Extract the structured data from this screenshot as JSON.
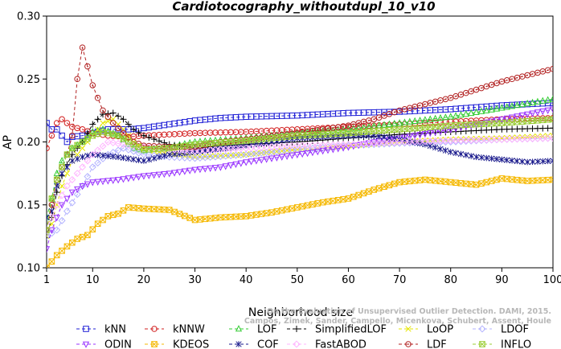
{
  "chart_data": {
    "type": "line",
    "title": "Cardiotocography_withoutdupl_10_v10",
    "xlabel": "Neighborhood size",
    "ylabel": "AP",
    "xlim": [
      1,
      100
    ],
    "ylim": [
      0.1,
      0.3
    ],
    "xticks": [
      "1",
      "10",
      "20",
      "30",
      "40",
      "50",
      "60",
      "70",
      "80",
      "90",
      "100"
    ],
    "yticks": [
      "0.10",
      "0.15",
      "0.20",
      "0.25",
      "0.30"
    ],
    "grid": false,
    "legend": "bottom",
    "watermark": [
      "Campos, Zimek, Sander, Campello, Micenkova, Schubert, Assent, Houle",
      "On the Evaluation of Unsupervised Outlier Detection. DAMI, 2015."
    ],
    "series": [
      {
        "name": "kNN",
        "color": "#1f1fd6",
        "marker": "square",
        "points": [
          [
            1,
            0.215
          ],
          [
            2,
            0.21
          ],
          [
            3,
            0.21
          ],
          [
            4,
            0.205
          ],
          [
            5,
            0.2
          ],
          [
            6,
            0.204
          ],
          [
            8,
            0.205
          ],
          [
            10,
            0.207
          ],
          [
            13,
            0.21
          ],
          [
            17,
            0.21
          ],
          [
            20,
            0.211
          ],
          [
            25,
            0.214
          ],
          [
            30,
            0.217
          ],
          [
            35,
            0.219
          ],
          [
            40,
            0.22
          ],
          [
            50,
            0.221
          ],
          [
            60,
            0.223
          ],
          [
            70,
            0.224
          ],
          [
            80,
            0.226
          ],
          [
            90,
            0.229
          ],
          [
            100,
            0.231
          ]
        ]
      },
      {
        "name": "kNNW",
        "color": "#d21f1f",
        "marker": "circle",
        "points": [
          [
            1,
            0.195
          ],
          [
            2,
            0.205
          ],
          [
            3,
            0.215
          ],
          [
            4,
            0.218
          ],
          [
            5,
            0.215
          ],
          [
            6,
            0.212
          ],
          [
            8,
            0.21
          ],
          [
            10,
            0.207
          ],
          [
            13,
            0.205
          ],
          [
            17,
            0.204
          ],
          [
            20,
            0.205
          ],
          [
            25,
            0.206
          ],
          [
            30,
            0.207
          ],
          [
            40,
            0.208
          ],
          [
            50,
            0.21
          ],
          [
            60,
            0.212
          ],
          [
            70,
            0.214
          ],
          [
            80,
            0.216
          ],
          [
            90,
            0.218
          ],
          [
            100,
            0.219
          ]
        ]
      },
      {
        "name": "LOF",
        "color": "#33cc33",
        "marker": "triangle-up",
        "points": [
          [
            1,
            0.14
          ],
          [
            2,
            0.155
          ],
          [
            3,
            0.175
          ],
          [
            4,
            0.185
          ],
          [
            5,
            0.19
          ],
          [
            6,
            0.195
          ],
          [
            8,
            0.2
          ],
          [
            10,
            0.208
          ],
          [
            12,
            0.21
          ],
          [
            15,
            0.205
          ],
          [
            18,
            0.195
          ],
          [
            20,
            0.193
          ],
          [
            25,
            0.196
          ],
          [
            30,
            0.2
          ],
          [
            40,
            0.203
          ],
          [
            50,
            0.207
          ],
          [
            60,
            0.21
          ],
          [
            70,
            0.215
          ],
          [
            80,
            0.22
          ],
          [
            90,
            0.227
          ],
          [
            100,
            0.234
          ]
        ]
      },
      {
        "name": "SimplifiedLOF",
        "color": "#000000",
        "marker": "plus",
        "points": [
          [
            1,
            0.124
          ],
          [
            2,
            0.14
          ],
          [
            3,
            0.16
          ],
          [
            4,
            0.173
          ],
          [
            5,
            0.182
          ],
          [
            6,
            0.19
          ],
          [
            8,
            0.2
          ],
          [
            10,
            0.214
          ],
          [
            12,
            0.222
          ],
          [
            14,
            0.223
          ],
          [
            16,
            0.218
          ],
          [
            18,
            0.21
          ],
          [
            20,
            0.205
          ],
          [
            25,
            0.198
          ],
          [
            30,
            0.195
          ],
          [
            35,
            0.197
          ],
          [
            40,
            0.198
          ],
          [
            50,
            0.2
          ],
          [
            60,
            0.203
          ],
          [
            70,
            0.206
          ],
          [
            80,
            0.208
          ],
          [
            90,
            0.21
          ],
          [
            100,
            0.211
          ]
        ]
      },
      {
        "name": "LoOP",
        "color": "#e6e600",
        "marker": "x",
        "points": [
          [
            1,
            0.125
          ],
          [
            2,
            0.135
          ],
          [
            3,
            0.15
          ],
          [
            4,
            0.165
          ],
          [
            5,
            0.175
          ],
          [
            6,
            0.185
          ],
          [
            8,
            0.195
          ],
          [
            10,
            0.205
          ],
          [
            12,
            0.215
          ],
          [
            14,
            0.218
          ],
          [
            16,
            0.21
          ],
          [
            18,
            0.2
          ],
          [
            20,
            0.195
          ],
          [
            25,
            0.19
          ],
          [
            30,
            0.188
          ],
          [
            40,
            0.19
          ],
          [
            50,
            0.194
          ],
          [
            60,
            0.197
          ],
          [
            70,
            0.2
          ],
          [
            80,
            0.202
          ],
          [
            90,
            0.203
          ],
          [
            100,
            0.205
          ]
        ]
      },
      {
        "name": "LDOF",
        "color": "#b3b3ff",
        "marker": "diamond",
        "points": [
          [
            1,
            0.125
          ],
          [
            3,
            0.13
          ],
          [
            5,
            0.145
          ],
          [
            8,
            0.165
          ],
          [
            10,
            0.18
          ],
          [
            13,
            0.19
          ],
          [
            16,
            0.195
          ],
          [
            20,
            0.19
          ],
          [
            25,
            0.188
          ],
          [
            30,
            0.187
          ],
          [
            40,
            0.19
          ],
          [
            50,
            0.194
          ],
          [
            60,
            0.197
          ],
          [
            70,
            0.199
          ],
          [
            80,
            0.2
          ],
          [
            90,
            0.202
          ],
          [
            100,
            0.203
          ]
        ]
      },
      {
        "name": "ODIN",
        "color": "#9933ff",
        "marker": "triangle-down",
        "points": [
          [
            1,
            0.115
          ],
          [
            2,
            0.13
          ],
          [
            3,
            0.14
          ],
          [
            4,
            0.15
          ],
          [
            5,
            0.155
          ],
          [
            6,
            0.16
          ],
          [
            8,
            0.165
          ],
          [
            10,
            0.168
          ],
          [
            15,
            0.17
          ],
          [
            20,
            0.173
          ],
          [
            25,
            0.175
          ],
          [
            30,
            0.178
          ],
          [
            35,
            0.18
          ],
          [
            40,
            0.184
          ],
          [
            50,
            0.19
          ],
          [
            60,
            0.196
          ],
          [
            65,
            0.2
          ],
          [
            70,
            0.203
          ],
          [
            80,
            0.21
          ],
          [
            90,
            0.218
          ],
          [
            100,
            0.226
          ]
        ]
      },
      {
        "name": "KDEOS",
        "color": "#f5b800",
        "marker": "square-x",
        "points": [
          [
            1,
            0.1
          ],
          [
            2,
            0.105
          ],
          [
            3,
            0.11
          ],
          [
            5,
            0.117
          ],
          [
            7,
            0.123
          ],
          [
            9,
            0.126
          ],
          [
            11,
            0.135
          ],
          [
            13,
            0.141
          ],
          [
            15,
            0.143
          ],
          [
            17,
            0.148
          ],
          [
            20,
            0.147
          ],
          [
            25,
            0.146
          ],
          [
            30,
            0.138
          ],
          [
            35,
            0.14
          ],
          [
            40,
            0.141
          ],
          [
            45,
            0.144
          ],
          [
            50,
            0.148
          ],
          [
            55,
            0.152
          ],
          [
            60,
            0.155
          ],
          [
            65,
            0.162
          ],
          [
            70,
            0.168
          ],
          [
            75,
            0.17
          ],
          [
            80,
            0.168
          ],
          [
            85,
            0.166
          ],
          [
            90,
            0.171
          ],
          [
            95,
            0.169
          ],
          [
            100,
            0.17
          ]
        ]
      },
      {
        "name": "COF",
        "color": "#1a1a8c",
        "marker": "asterisk",
        "points": [
          [
            1,
            0.14
          ],
          [
            2,
            0.145
          ],
          [
            3,
            0.165
          ],
          [
            4,
            0.175
          ],
          [
            5,
            0.18
          ],
          [
            6,
            0.185
          ],
          [
            8,
            0.188
          ],
          [
            10,
            0.19
          ],
          [
            15,
            0.188
          ],
          [
            20,
            0.185
          ],
          [
            25,
            0.19
          ],
          [
            30,
            0.192
          ],
          [
            40,
            0.197
          ],
          [
            50,
            0.203
          ],
          [
            60,
            0.205
          ],
          [
            65,
            0.205
          ],
          [
            70,
            0.202
          ],
          [
            75,
            0.198
          ],
          [
            80,
            0.192
          ],
          [
            85,
            0.188
          ],
          [
            90,
            0.186
          ],
          [
            95,
            0.184
          ],
          [
            100,
            0.185
          ]
        ]
      },
      {
        "name": "FastABOD",
        "color": "#ffb3ff",
        "marker": "diamond",
        "points": [
          [
            1,
            0.13
          ],
          [
            3,
            0.15
          ],
          [
            5,
            0.165
          ],
          [
            8,
            0.18
          ],
          [
            10,
            0.19
          ],
          [
            13,
            0.2
          ],
          [
            16,
            0.198
          ],
          [
            20,
            0.196
          ],
          [
            25,
            0.194
          ],
          [
            30,
            0.193
          ],
          [
            40,
            0.195
          ],
          [
            50,
            0.197
          ],
          [
            60,
            0.198
          ],
          [
            70,
            0.2
          ],
          [
            80,
            0.201
          ],
          [
            90,
            0.202
          ],
          [
            100,
            0.203
          ]
        ]
      },
      {
        "name": "LDF",
        "color": "#b22222",
        "marker": "circle-dot",
        "points": [
          [
            1,
            0.13
          ],
          [
            2,
            0.15
          ],
          [
            3,
            0.17
          ],
          [
            4,
            0.18
          ],
          [
            5,
            0.19
          ],
          [
            6,
            0.205
          ],
          [
            7,
            0.25
          ],
          [
            8,
            0.275
          ],
          [
            9,
            0.26
          ],
          [
            10,
            0.245
          ],
          [
            11,
            0.235
          ],
          [
            12,
            0.225
          ],
          [
            14,
            0.215
          ],
          [
            16,
            0.207
          ],
          [
            18,
            0.2
          ],
          [
            20,
            0.197
          ],
          [
            25,
            0.196
          ],
          [
            30,
            0.196
          ],
          [
            35,
            0.2
          ],
          [
            40,
            0.202
          ],
          [
            50,
            0.207
          ],
          [
            60,
            0.213
          ],
          [
            65,
            0.218
          ],
          [
            70,
            0.225
          ],
          [
            80,
            0.235
          ],
          [
            90,
            0.248
          ],
          [
            100,
            0.258
          ]
        ]
      },
      {
        "name": "INFLO",
        "color": "#99cc33",
        "marker": "square-x",
        "points": [
          [
            1,
            0.13
          ],
          [
            2,
            0.155
          ],
          [
            3,
            0.17
          ],
          [
            4,
            0.18
          ],
          [
            5,
            0.19
          ],
          [
            6,
            0.195
          ],
          [
            8,
            0.2
          ],
          [
            10,
            0.205
          ],
          [
            12,
            0.208
          ],
          [
            15,
            0.205
          ],
          [
            18,
            0.198
          ],
          [
            20,
            0.194
          ],
          [
            25,
            0.195
          ],
          [
            30,
            0.198
          ],
          [
            40,
            0.201
          ],
          [
            50,
            0.205
          ],
          [
            60,
            0.207
          ],
          [
            70,
            0.21
          ],
          [
            80,
            0.213
          ],
          [
            90,
            0.215
          ],
          [
            100,
            0.218
          ]
        ]
      }
    ]
  }
}
